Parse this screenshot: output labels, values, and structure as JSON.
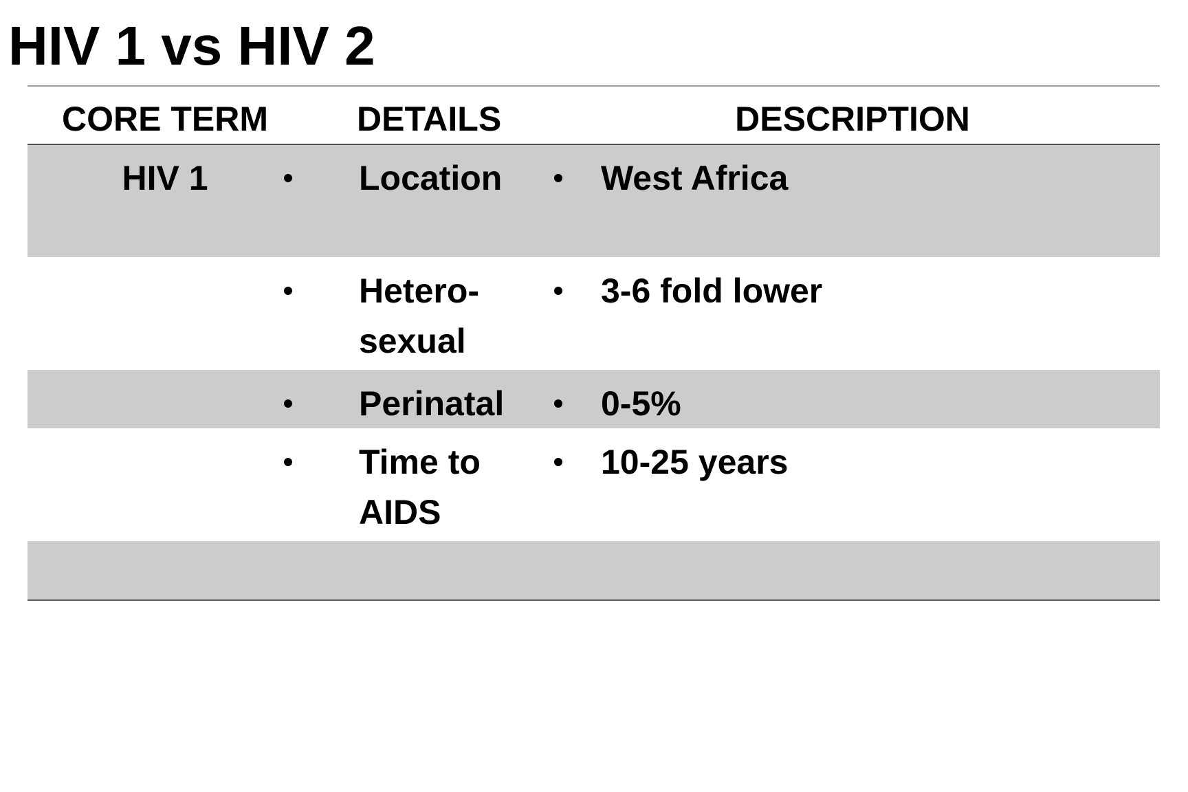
{
  "header": {
    "title": "HIV 1 vs HIV 2"
  },
  "table": {
    "columns": [
      "CORE TERM",
      "DETAILS",
      "DESCRIPTION"
    ],
    "rows": [
      {
        "core_term": "HIV 1",
        "details": "Location",
        "description": "West Africa"
      },
      {
        "details": [
          "Hetero-",
          "sexual"
        ],
        "description": "3-6 fold lower"
      },
      {
        "details": "Perinatal",
        "description": "0-5%"
      },
      {
        "details": [
          "Time to",
          "AIDS"
        ],
        "description": "10-25 years"
      }
    ]
  }
}
